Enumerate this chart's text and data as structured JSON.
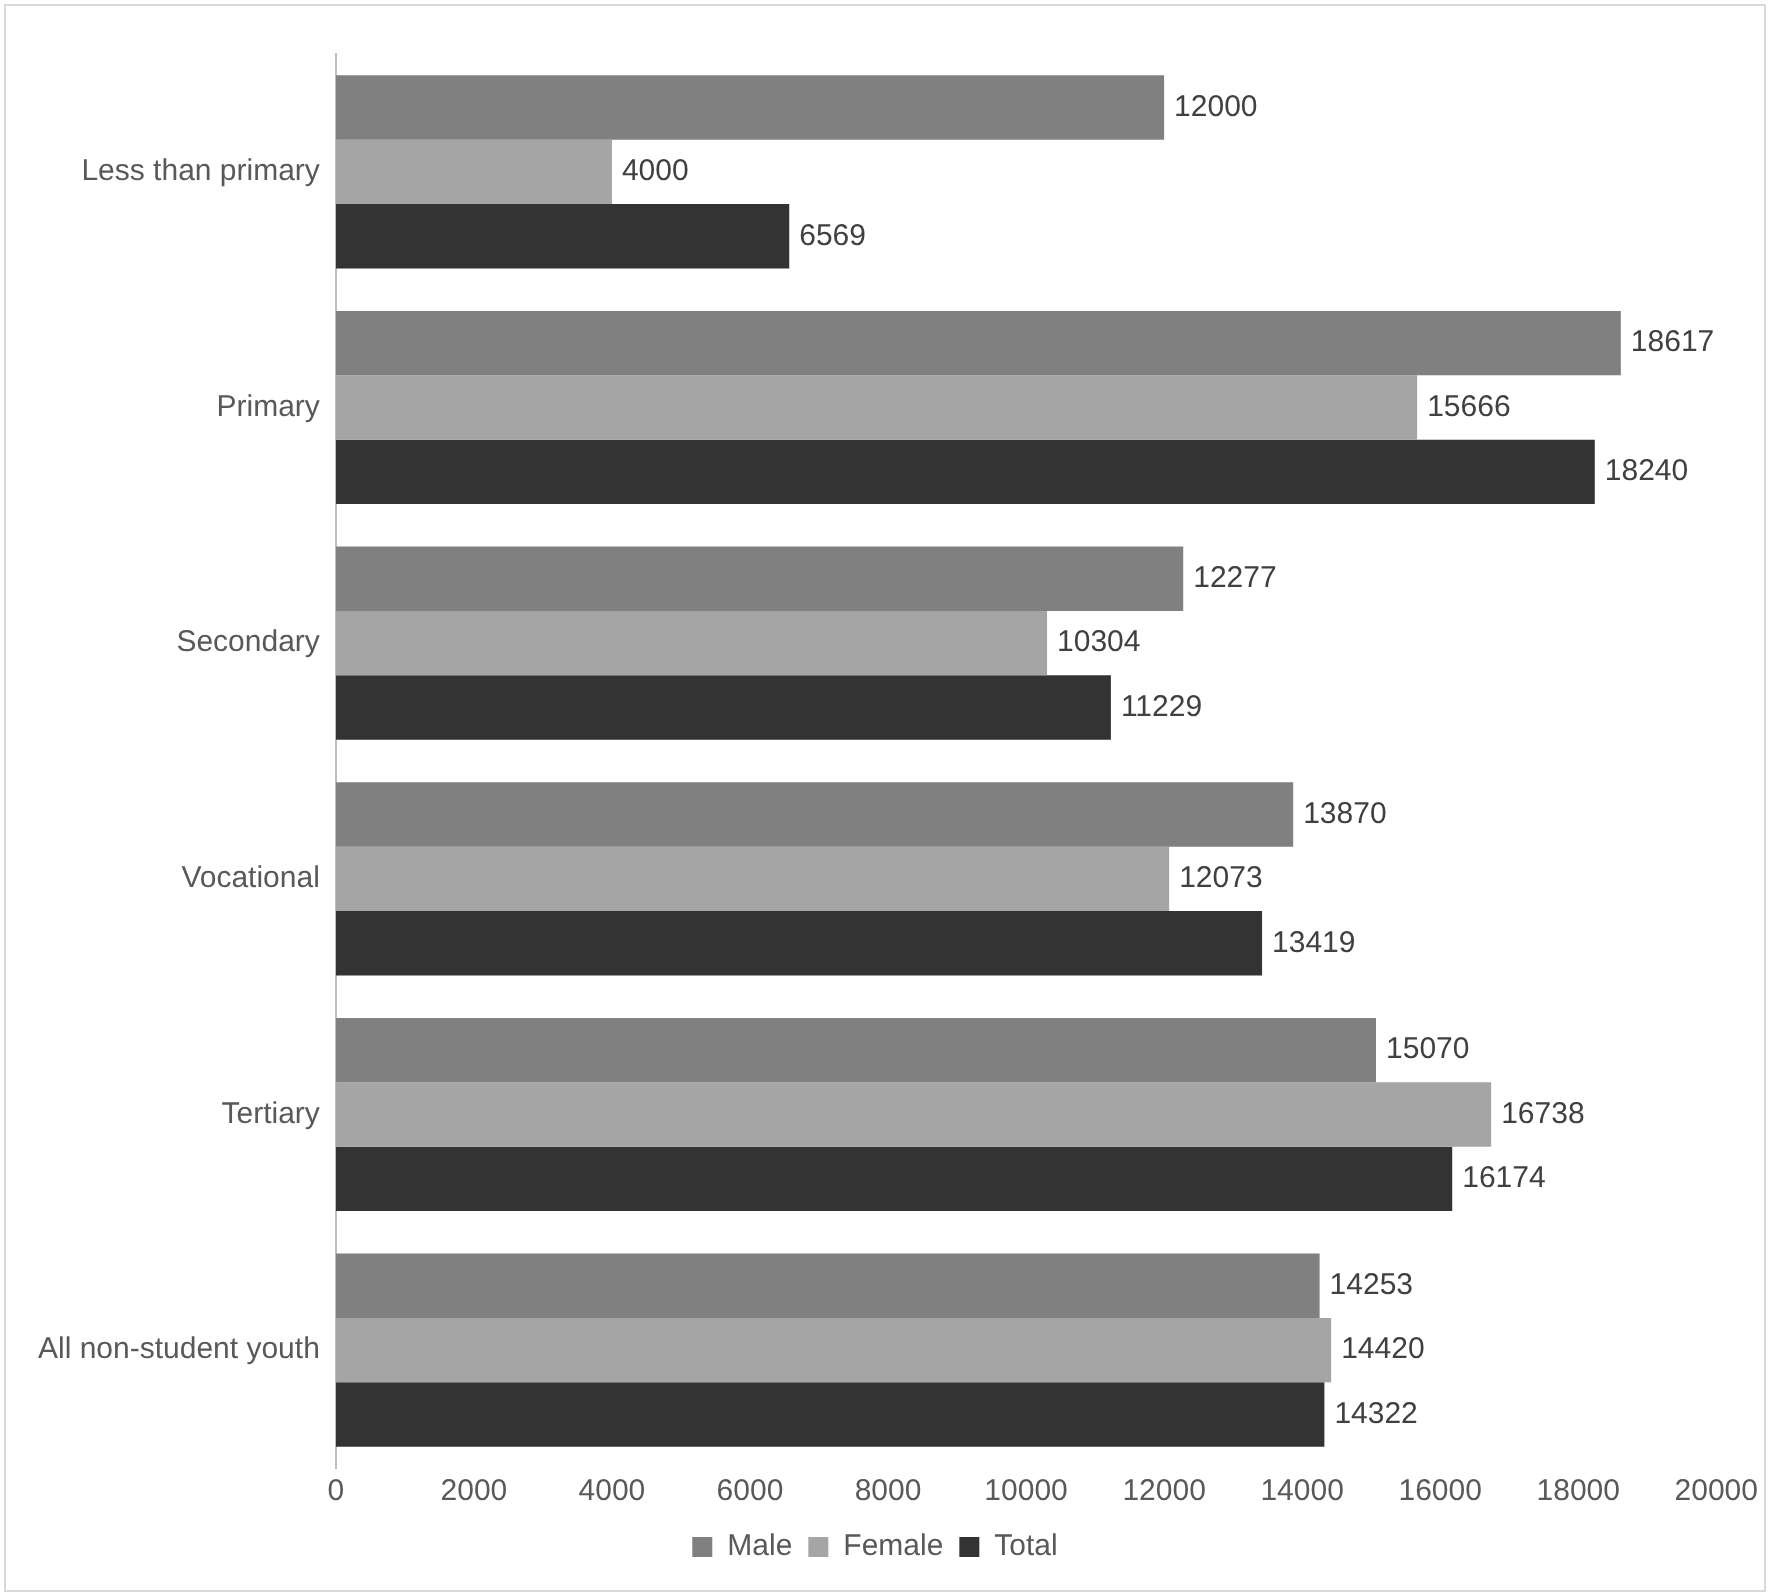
{
  "chart_data": {
    "type": "bar",
    "orientation": "horizontal",
    "categories": [
      "Less than primary",
      "Primary",
      "Secondary",
      "Vocational",
      "Tertiary",
      "All non-student youth"
    ],
    "series": [
      {
        "name": "Male",
        "color": "#808080",
        "values": [
          12000,
          18617,
          12277,
          13870,
          15070,
          14253
        ]
      },
      {
        "name": "Female",
        "color": "#a5a5a5",
        "values": [
          4000,
          15666,
          10304,
          12073,
          16738,
          14420
        ]
      },
      {
        "name": "Total",
        "color": "#333333",
        "values": [
          6569,
          18240,
          11229,
          13419,
          16174,
          14322
        ]
      }
    ],
    "xlim": [
      0,
      20000
    ],
    "xticks": [
      0,
      2000,
      4000,
      6000,
      8000,
      10000,
      12000,
      14000,
      16000,
      18000,
      20000
    ],
    "grid": false,
    "legend": "bottom",
    "data_labels": true
  }
}
